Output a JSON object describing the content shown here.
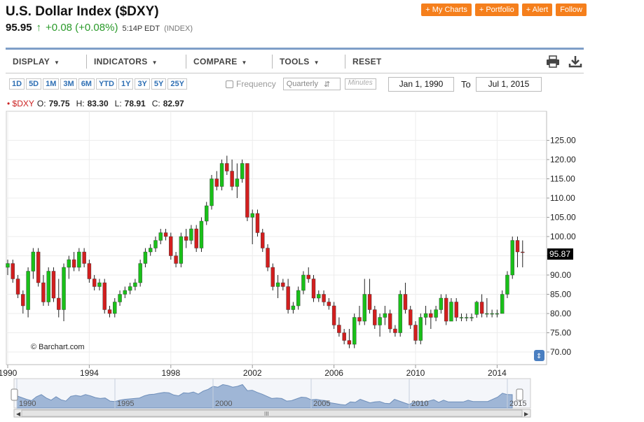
{
  "header": {
    "title": "U.S. Dollar Index ($DXY)",
    "price": "95.95",
    "change": "+0.08 (+0.08%)",
    "time": "5:14P EDT",
    "type": "(INDEX)"
  },
  "top_buttons": [
    "+ My Charts",
    "+ Portfolio",
    "+ Alert",
    "Follow"
  ],
  "menu": {
    "display": "DISPLAY",
    "indicators": "INDICATORS",
    "compare": "COMPARE",
    "tools": "TOOLS",
    "reset": "RESET"
  },
  "ranges": [
    "1D",
    "5D",
    "1M",
    "3M",
    "6M",
    "YTD",
    "1Y",
    "3Y",
    "5Y",
    "25Y"
  ],
  "frequency": {
    "label": "Frequency",
    "value": "Quarterly",
    "minutes_placeholder": "Minutes"
  },
  "dates": {
    "from": "Jan 1, 1990",
    "to_label": "To",
    "to": "Jul 1, 2015"
  },
  "ohlc": {
    "symbol": "$DXY",
    "o_label": "O:",
    "o": "79.75",
    "h_label": "H:",
    "h": "83.30",
    "l_label": "L:",
    "l": "78.91",
    "c_label": "C:",
    "c": "82.97"
  },
  "watermark": "© Barchart.com",
  "colors": {
    "up": "#19c019",
    "down": "#d21e1e",
    "accent": "#f57f1c",
    "nav_fill": "#9fb6d6"
  },
  "chart_data": {
    "type": "candlestick",
    "title": "",
    "xlabel": "",
    "ylabel": "",
    "ylim": [
      65,
      130
    ],
    "xlim": [
      1990,
      2015.75
    ],
    "y_ticks": [
      70,
      75,
      80,
      85,
      90,
      95,
      100,
      105,
      110,
      115,
      120,
      125
    ],
    "y_tick_labels": [
      "70.00",
      "75.00",
      "80.00",
      "85.00",
      "90.00",
      "95.00",
      "100.00",
      "105.00",
      "110.00",
      "115.00",
      "120.00",
      "125.00"
    ],
    "x_ticks": [
      1990,
      1994,
      1998,
      2002,
      2006,
      2010,
      2014
    ],
    "x_tick_labels": [
      "1990",
      "1994",
      "1998",
      "2002",
      "2006",
      "2010",
      "2014"
    ],
    "last_value_label": "95.87",
    "grid": true,
    "candles": [
      [
        1990.0,
        92,
        94,
        90,
        93
      ],
      [
        1990.25,
        93,
        94,
        88,
        89
      ],
      [
        1990.5,
        89,
        90,
        84,
        85
      ],
      [
        1990.75,
        85,
        86,
        80,
        82
      ],
      [
        1991.0,
        81,
        92,
        79,
        91
      ],
      [
        1991.25,
        91,
        97,
        89,
        96
      ],
      [
        1991.5,
        96,
        97,
        87,
        88
      ],
      [
        1991.75,
        88,
        90,
        82,
        83
      ],
      [
        1992.0,
        83,
        92,
        82,
        91
      ],
      [
        1992.25,
        91,
        92,
        83,
        84
      ],
      [
        1992.5,
        84,
        89,
        79,
        81
      ],
      [
        1992.75,
        81,
        93,
        78,
        92
      ],
      [
        1993.0,
        92,
        95,
        89,
        94
      ],
      [
        1993.25,
        94,
        96,
        91,
        92
      ],
      [
        1993.5,
        92,
        97,
        91,
        96
      ],
      [
        1993.75,
        96,
        97,
        92,
        93
      ],
      [
        1994.0,
        93,
        94,
        88,
        89
      ],
      [
        1994.25,
        89,
        90,
        86,
        87
      ],
      [
        1994.5,
        87,
        89,
        86,
        88
      ],
      [
        1994.75,
        88,
        89,
        80,
        81
      ],
      [
        1995.0,
        81,
        82,
        79,
        80
      ],
      [
        1995.25,
        80,
        84,
        79,
        83
      ],
      [
        1995.5,
        83,
        86,
        82,
        85
      ],
      [
        1995.75,
        85,
        87,
        84,
        86
      ],
      [
        1996.0,
        86,
        88,
        85,
        87
      ],
      [
        1996.25,
        87,
        89,
        86,
        88
      ],
      [
        1996.5,
        88,
        94,
        87,
        93
      ],
      [
        1996.75,
        93,
        97,
        92,
        96
      ],
      [
        1997.0,
        96,
        98,
        95,
        97
      ],
      [
        1997.25,
        97,
        100,
        96,
        99
      ],
      [
        1997.5,
        99,
        102,
        98,
        101
      ],
      [
        1997.75,
        101,
        102,
        99,
        100
      ],
      [
        1998.0,
        100,
        101,
        94,
        95
      ],
      [
        1998.25,
        95,
        96,
        92,
        93
      ],
      [
        1998.5,
        93,
        101,
        92,
        100
      ],
      [
        1998.75,
        100,
        102,
        97,
        99
      ],
      [
        1999.0,
        99,
        103,
        98,
        102
      ],
      [
        1999.25,
        102,
        103,
        96,
        97
      ],
      [
        1999.5,
        97,
        105,
        96,
        104
      ],
      [
        1999.75,
        104,
        109,
        103,
        108
      ],
      [
        2000.0,
        108,
        116,
        107,
        115
      ],
      [
        2000.25,
        115,
        117,
        112,
        113
      ],
      [
        2000.5,
        113,
        120,
        112,
        119
      ],
      [
        2000.75,
        119,
        121,
        116,
        117
      ],
      [
        2001.0,
        117,
        120,
        112,
        113
      ],
      [
        2001.25,
        113,
        119,
        110,
        115
      ],
      [
        2001.5,
        115,
        120,
        114,
        119
      ],
      [
        2001.75,
        119,
        119,
        104,
        105
      ],
      [
        2002.0,
        105,
        107,
        98,
        106
      ],
      [
        2002.25,
        106,
        107,
        100,
        101
      ],
      [
        2002.5,
        101,
        102,
        96,
        97
      ],
      [
        2002.75,
        97,
        98,
        91,
        92
      ],
      [
        2003.0,
        92,
        93,
        86,
        87
      ],
      [
        2003.25,
        87,
        90,
        84,
        88
      ],
      [
        2003.5,
        88,
        89,
        86,
        87
      ],
      [
        2003.75,
        87,
        89,
        80,
        81
      ],
      [
        2004.0,
        81,
        83,
        80,
        82
      ],
      [
        2004.25,
        82,
        87,
        81,
        86
      ],
      [
        2004.5,
        86,
        91,
        85,
        90
      ],
      [
        2004.75,
        90,
        92,
        88,
        89
      ],
      [
        2005.0,
        89,
        90,
        83,
        84
      ],
      [
        2005.25,
        84,
        86,
        83,
        85
      ],
      [
        2005.5,
        85,
        86,
        82,
        83
      ],
      [
        2005.75,
        83,
        84,
        81,
        82
      ],
      [
        2006.0,
        82,
        83,
        76,
        77
      ],
      [
        2006.25,
        77,
        79,
        74,
        75
      ],
      [
        2006.5,
        75,
        76,
        72,
        73
      ],
      [
        2006.75,
        73,
        76,
        71,
        72
      ],
      [
        2007.0,
        72,
        80,
        71,
        79
      ],
      [
        2007.25,
        79,
        82,
        77,
        78
      ],
      [
        2007.5,
        78,
        89,
        77,
        85
      ],
      [
        2007.75,
        85,
        89,
        80,
        81
      ],
      [
        2008.0,
        81,
        82,
        76,
        77
      ],
      [
        2008.25,
        77,
        80,
        74,
        79
      ],
      [
        2008.5,
        79,
        82,
        77,
        80
      ],
      [
        2008.75,
        80,
        81,
        75,
        76
      ],
      [
        2009.0,
        76,
        77,
        74,
        75
      ],
      [
        2009.25,
        75,
        86,
        74,
        85
      ],
      [
        2009.5,
        85,
        88,
        80,
        81
      ],
      [
        2009.75,
        81,
        82,
        76,
        77
      ],
      [
        2010.0,
        77,
        78,
        72,
        73
      ],
      [
        2010.25,
        73,
        80,
        72,
        79
      ],
      [
        2010.5,
        79,
        82,
        77,
        80
      ],
      [
        2010.75,
        80,
        81,
        76,
        79
      ],
      [
        2011.0,
        79,
        82,
        78,
        81
      ],
      [
        2011.25,
        81,
        85,
        80,
        84
      ],
      [
        2011.5,
        84,
        85,
        77,
        78
      ],
      [
        2011.75,
        78,
        84,
        78,
        83
      ],
      [
        2012.0,
        83,
        84,
        78,
        79
      ],
      [
        2012.25,
        79,
        80,
        78,
        79
      ],
      [
        2012.5,
        79,
        80,
        78,
        79
      ],
      [
        2012.75,
        79,
        80,
        78,
        79
      ],
      [
        2013.0,
        79.75,
        83.3,
        78.91,
        82.97
      ],
      [
        2013.25,
        83,
        85,
        79,
        80
      ],
      [
        2013.5,
        80,
        84,
        79,
        80
      ],
      [
        2013.75,
        80,
        81,
        79,
        80
      ],
      [
        2014.0,
        80,
        81,
        79,
        80
      ],
      [
        2014.25,
        80,
        86,
        80,
        85
      ],
      [
        2014.5,
        85,
        91,
        84,
        90
      ],
      [
        2014.75,
        90,
        100,
        89,
        99
      ],
      [
        2015.0,
        99,
        100,
        92,
        96
      ],
      [
        2015.25,
        96,
        99,
        92,
        95.87
      ]
    ]
  },
  "navigator": {
    "labels": [
      "1990",
      "1995",
      "2000",
      "2005",
      "2010",
      "2015"
    ],
    "scroll_label": "III"
  }
}
